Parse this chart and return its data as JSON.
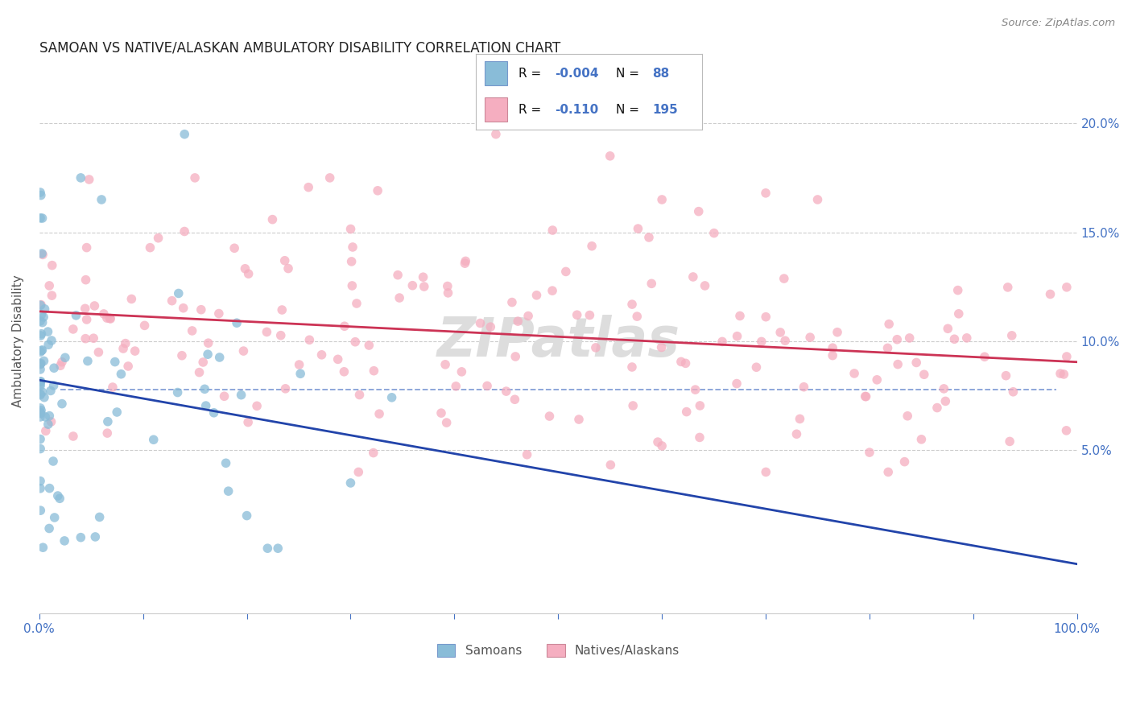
{
  "title": "SAMOAN VS NATIVE/ALASKAN AMBULATORY DISABILITY CORRELATION CHART",
  "source": "Source: ZipAtlas.com",
  "ylabel": "Ambulatory Disability",
  "xlim": [
    0.0,
    1.0
  ],
  "ylim": [
    -0.025,
    0.225
  ],
  "ytick_positions": [
    0.05,
    0.1,
    0.15,
    0.2
  ],
  "ytick_labels": [
    "5.0%",
    "10.0%",
    "15.0%",
    "20.0%"
  ],
  "xtick_positions": [
    0.0,
    0.1,
    0.2,
    0.3,
    0.4,
    0.5,
    0.6,
    0.7,
    0.8,
    0.9,
    1.0
  ],
  "xtick_labels": [
    "0.0%",
    "",
    "",
    "",
    "",
    "",
    "",
    "",
    "",
    "",
    "100.0%"
  ],
  "samoan_color": "#89bcd8",
  "native_color": "#f5aec0",
  "samoan_edge_color": "#5590bb",
  "native_edge_color": "#d06080",
  "trend_samoan_color": "#2244aa",
  "trend_native_color": "#cc3355",
  "trend_dashed_color": "#6688cc",
  "background_color": "#ffffff",
  "grid_color": "#cccccc",
  "grid_style": "--",
  "title_fontsize": 12,
  "axis_tick_color": "#4472c4",
  "ylabel_color": "#555555",
  "source_color": "#888888",
  "watermark": "ZIPatlas",
  "watermark_color": "#dddddd",
  "legend_text_color": "#111111",
  "legend_val_color": "#4472c4",
  "samoan_R": -0.004,
  "samoan_N": 88,
  "native_R": -0.11,
  "native_N": 195,
  "marker_size": 70,
  "marker_alpha": 0.75
}
